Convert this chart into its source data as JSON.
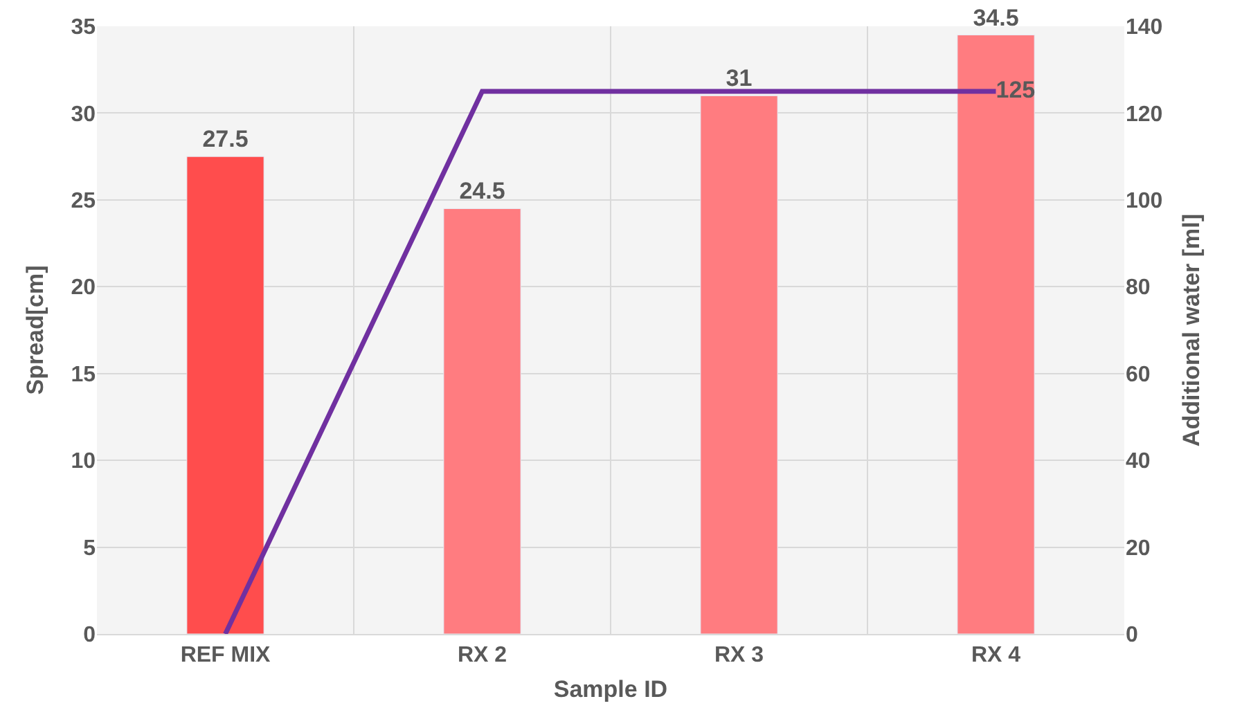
{
  "chart_data": {
    "type": "bar",
    "xlabel": "Sample ID",
    "ylabel": "Spread[cm]",
    "y2label": "Additional water [ml]",
    "categories": [
      "REF MIX",
      "RX 2",
      "RX 3",
      "RX 4"
    ],
    "series": [
      {
        "colors": [
          "#ff4d4d",
          "#ff7c80",
          "#ff7c80",
          "#ff7c80"
        ],
        "values": [
          27.5,
          24.5,
          31,
          34.5
        ],
        "value_labels": [
          "27.5",
          "24.5",
          "31",
          "34.5"
        ]
      },
      {
        "type": "line",
        "axis": "y2",
        "color": "#7030a0",
        "values": [
          0,
          125,
          125,
          125
        ],
        "value_labels": [
          null,
          null,
          null,
          "125"
        ]
      }
    ],
    "ylim": [
      0,
      35
    ],
    "yticks": [
      0,
      5,
      10,
      15,
      20,
      25,
      30,
      35
    ],
    "y2lim": [
      0,
      140
    ],
    "y2ticks": [
      0,
      20,
      40,
      60,
      80,
      100,
      120,
      140
    ],
    "grid": true,
    "marker": "none",
    "line_style": "solid"
  }
}
